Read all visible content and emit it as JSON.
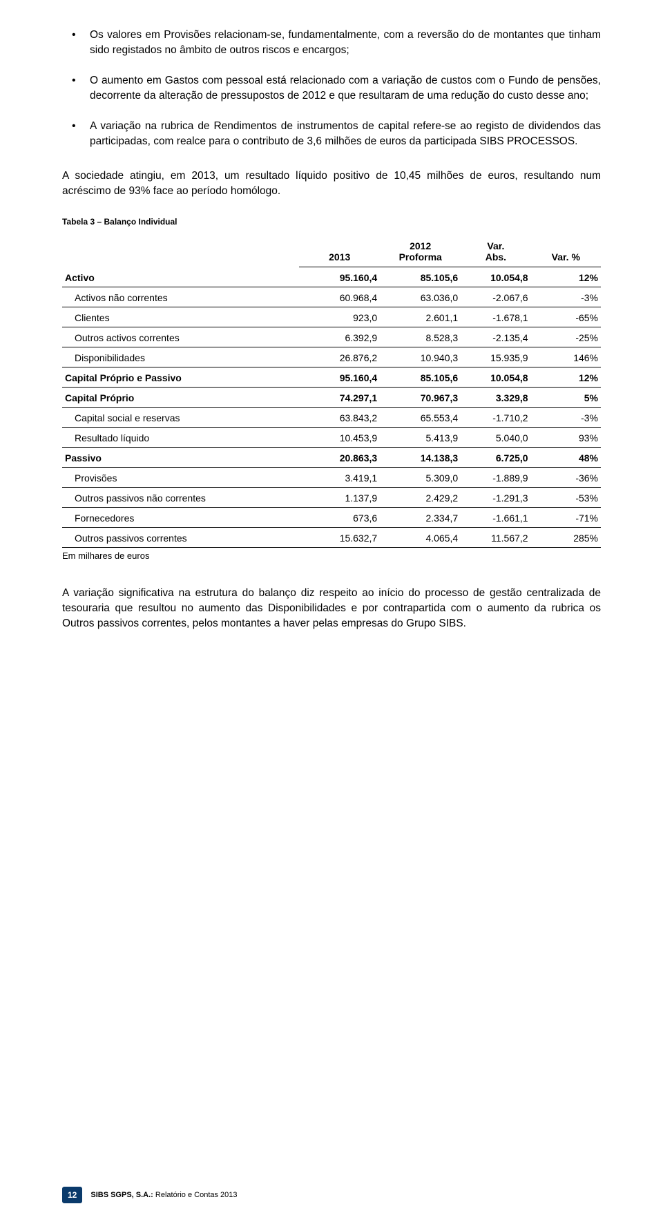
{
  "bullets": [
    "Os valores em Provisões relacionam-se, fundamentalmente, com a reversão do de montantes que tinham sido registados no âmbito de outros riscos e encargos;",
    "O aumento em Gastos com pessoal está relacionado com a variação de custos com o Fundo de pensões, decorrente da alteração de pressupostos de 2012 e que resultaram de uma redução do custo desse ano;",
    "A variação na rubrica de Rendimentos de instrumentos de capital refere-se ao registo de dividendos das participadas, com realce para o contributo de 3,6 milhões de euros da participada SIBS PROCESSOS."
  ],
  "para1": "A sociedade atingiu, em 2013, um resultado líquido positivo de 10,45 milhões de euros, resultando num acréscimo de 93% face ao período homólogo.",
  "table_caption": "Tabela 3 – Balanço Individual",
  "table": {
    "columns": {
      "c2013": "2013",
      "c2012_l1": "2012",
      "c2012_l2": "Proforma",
      "varabs_l1": "Var.",
      "varabs_l2": "Abs.",
      "varpct": "Var. %"
    },
    "rows": [
      {
        "label": "Activo",
        "bold": true,
        "indent": 0,
        "v2013": "95.160,4",
        "v2012": "85.105,6",
        "vabs": "10.054,8",
        "vpct": "12%"
      },
      {
        "label": "Activos não correntes",
        "bold": false,
        "indent": 1,
        "v2013": "60.968,4",
        "v2012": "63.036,0",
        "vabs": "-2.067,6",
        "vpct": "-3%"
      },
      {
        "label": "Clientes",
        "bold": false,
        "indent": 1,
        "v2013": "923,0",
        "v2012": "2.601,1",
        "vabs": "-1.678,1",
        "vpct": "-65%"
      },
      {
        "label": "Outros activos correntes",
        "bold": false,
        "indent": 1,
        "v2013": "6.392,9",
        "v2012": "8.528,3",
        "vabs": "-2.135,4",
        "vpct": "-25%"
      },
      {
        "label": "Disponibilidades",
        "bold": false,
        "indent": 1,
        "v2013": "26.876,2",
        "v2012": "10.940,3",
        "vabs": "15.935,9",
        "vpct": "146%"
      },
      {
        "label": "Capital Próprio e Passivo",
        "bold": true,
        "indent": 0,
        "v2013": "95.160,4",
        "v2012": "85.105,6",
        "vabs": "10.054,8",
        "vpct": "12%"
      },
      {
        "label": "Capital Próprio",
        "bold": true,
        "indent": 0,
        "v2013": "74.297,1",
        "v2012": "70.967,3",
        "vabs": "3.329,8",
        "vpct": "5%"
      },
      {
        "label": "Capital social e reservas",
        "bold": false,
        "indent": 1,
        "v2013": "63.843,2",
        "v2012": "65.553,4",
        "vabs": "-1.710,2",
        "vpct": "-3%"
      },
      {
        "label": "Resultado líquido",
        "bold": false,
        "indent": 1,
        "v2013": "10.453,9",
        "v2012": "5.413,9",
        "vabs": "5.040,0",
        "vpct": "93%"
      },
      {
        "label": "Passivo",
        "bold": true,
        "indent": 0,
        "v2013": "20.863,3",
        "v2012": "14.138,3",
        "vabs": "6.725,0",
        "vpct": "48%"
      },
      {
        "label": "Provisões",
        "bold": false,
        "indent": 1,
        "v2013": "3.419,1",
        "v2012": "5.309,0",
        "vabs": "-1.889,9",
        "vpct": "-36%"
      },
      {
        "label": "Outros passivos não correntes",
        "bold": false,
        "indent": 1,
        "v2013": "1.137,9",
        "v2012": "2.429,2",
        "vabs": "-1.291,3",
        "vpct": "-53%"
      },
      {
        "label": "Fornecedores",
        "bold": false,
        "indent": 1,
        "v2013": "673,6",
        "v2012": "2.334,7",
        "vabs": "-1.661,1",
        "vpct": "-71%"
      },
      {
        "label": "Outros passivos correntes",
        "bold": false,
        "indent": 1,
        "v2013": "15.632,7",
        "v2012": "4.065,4",
        "vabs": "11.567,2",
        "vpct": "285%"
      }
    ],
    "note": "Em milhares de euros",
    "col_widths": [
      "44%",
      "15%",
      "15%",
      "13%",
      "13%"
    ]
  },
  "para2": "A variação significativa na estrutura do balanço diz respeito ao início do processo de gestão centralizada de tesouraria que resultou no aumento das Disponibilidades e por contrapartida com o aumento da rubrica os Outros passivos correntes, pelos montantes a haver pelas empresas do Grupo SIBS.",
  "footer": {
    "page": "12",
    "company": "SIBS  SGPS, S.A.: ",
    "doc": "Relatório e Contas 2013"
  },
  "colors": {
    "text": "#000000",
    "background": "#ffffff",
    "badge_bg": "#0a3a6b",
    "badge_text": "#ffffff",
    "table_border": "#000000"
  }
}
